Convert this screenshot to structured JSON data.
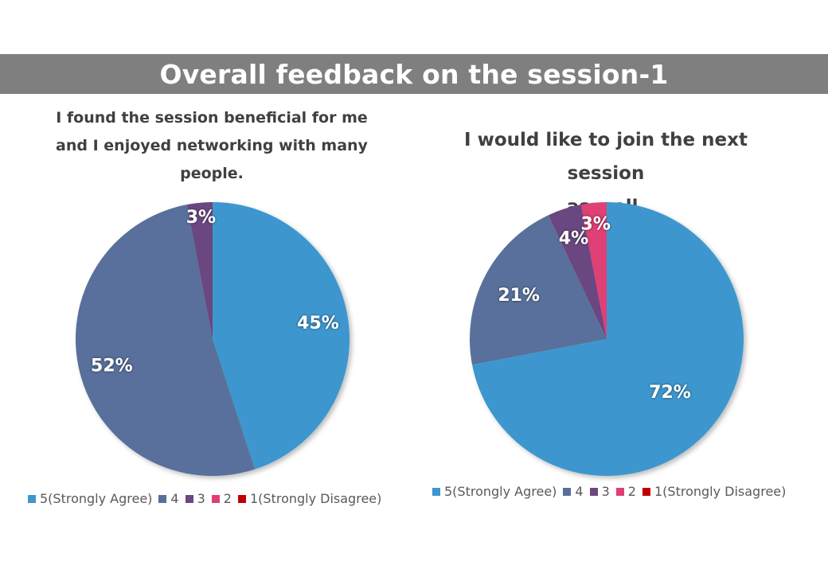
{
  "header": {
    "title": "Overall feedback on the session-1"
  },
  "legend_labels": [
    "5(Strongly Agree)",
    "4",
    "3",
    "2",
    "1(Strongly Disagree)"
  ],
  "colors": {
    "5(Strongly Agree)": "#3d97ce",
    "4": "#586f9b",
    "3": "#6b4680",
    "2": "#df3f75",
    "1(Strongly Disagree)": "#c00000"
  },
  "chart_data": [
    {
      "type": "pie",
      "title": "I found the session beneficial for me\nand I enjoyed networking with many\npeople.",
      "categories": [
        "5(Strongly Agree)",
        "4",
        "3",
        "2",
        "1(Strongly Disagree)"
      ],
      "values": [
        45,
        52,
        3,
        0,
        0
      ],
      "data_labels": [
        "45%",
        "52%",
        "3%",
        "",
        ""
      ],
      "legend": "bottom"
    },
    {
      "type": "pie",
      "title": "I would like to join the next session\nas well.",
      "categories": [
        "5(Strongly Agree)",
        "4",
        "3",
        "2",
        "1(Strongly Disagree)"
      ],
      "values": [
        72,
        21,
        4,
        3,
        0
      ],
      "data_labels": [
        "72%",
        "21%",
        "4%",
        "3%",
        ""
      ],
      "legend": "bottom"
    }
  ]
}
